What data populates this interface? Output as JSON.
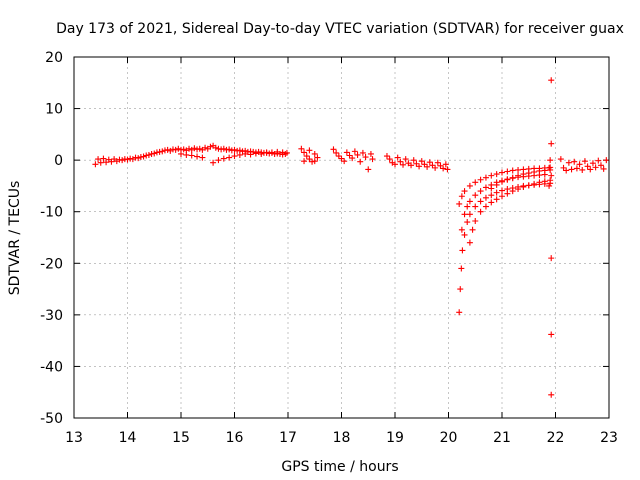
{
  "chart_data": {
    "type": "scatter",
    "title": "Day 173 of 2021, Sidereal Day-to-day VTEC variation (SDTVAR) for receiver guax",
    "xlabel": "GPS time / hours",
    "ylabel": "SDTVAR / TECUs",
    "xlim": [
      13,
      23
    ],
    "ylim": [
      -50,
      20
    ],
    "xticks": [
      13,
      14,
      15,
      16,
      17,
      18,
      19,
      20,
      21,
      22,
      23
    ],
    "xtick_labels": [
      "13",
      "14",
      "15",
      "16",
      "17",
      "18",
      "19",
      "20",
      "21",
      "22",
      "23"
    ],
    "yticks": [
      20,
      10,
      0,
      -10,
      -20,
      -30,
      -40,
      -50
    ],
    "ytick_labels": [
      "20",
      "10",
      "0",
      "-10",
      "-20",
      "-30",
      "-40",
      "-50"
    ],
    "grid": true,
    "marker": "+",
    "color": "#ff0000",
    "series": [
      {
        "name": "SDTVAR",
        "points": [
          [
            13.4,
            -0.8
          ],
          [
            13.45,
            0.2
          ],
          [
            13.5,
            -0.5
          ],
          [
            13.55,
            0.3
          ],
          [
            13.6,
            -0.4
          ],
          [
            13.65,
            0.1
          ],
          [
            13.7,
            -0.3
          ],
          [
            13.75,
            0.2
          ],
          [
            13.8,
            -0.2
          ],
          [
            13.85,
            0.1
          ],
          [
            13.9,
            0.0
          ],
          [
            13.95,
            0.2
          ],
          [
            14.0,
            0.1
          ],
          [
            14.05,
            0.3
          ],
          [
            14.1,
            0.2
          ],
          [
            14.15,
            0.5
          ],
          [
            14.2,
            0.4
          ],
          [
            14.25,
            0.6
          ],
          [
            14.3,
            0.7
          ],
          [
            14.35,
            0.9
          ],
          [
            14.4,
            1.0
          ],
          [
            14.45,
            1.2
          ],
          [
            14.5,
            1.3
          ],
          [
            14.55,
            1.5
          ],
          [
            14.6,
            1.6
          ],
          [
            14.65,
            1.7
          ],
          [
            14.7,
            1.9
          ],
          [
            14.75,
            2.0
          ],
          [
            14.8,
            1.8
          ],
          [
            14.85,
            2.1
          ],
          [
            14.9,
            2.0
          ],
          [
            14.95,
            2.2
          ],
          [
            15.0,
            2.0
          ],
          [
            15.05,
            2.1
          ],
          [
            15.1,
            1.9
          ],
          [
            15.15,
            2.2
          ],
          [
            15.2,
            2.0
          ],
          [
            15.25,
            2.3
          ],
          [
            15.3,
            2.1
          ],
          [
            15.35,
            2.2
          ],
          [
            15.4,
            2.0
          ],
          [
            15.45,
            2.4
          ],
          [
            15.5,
            2.2
          ],
          [
            15.55,
            2.6
          ],
          [
            15.6,
            2.8
          ],
          [
            15.65,
            2.4
          ],
          [
            15.7,
            2.2
          ],
          [
            15.75,
            2.1
          ],
          [
            15.8,
            2.2
          ],
          [
            15.85,
            2.0
          ],
          [
            15.9,
            2.1
          ],
          [
            15.95,
            1.9
          ],
          [
            16.0,
            2.0
          ],
          [
            16.05,
            1.8
          ],
          [
            16.1,
            1.9
          ],
          [
            16.15,
            1.7
          ],
          [
            16.2,
            1.8
          ],
          [
            16.25,
            1.6
          ],
          [
            16.3,
            1.7
          ],
          [
            16.35,
            1.6
          ],
          [
            16.4,
            1.5
          ],
          [
            16.45,
            1.6
          ],
          [
            16.5,
            1.5
          ],
          [
            16.55,
            1.4
          ],
          [
            16.6,
            1.5
          ],
          [
            16.65,
            1.3
          ],
          [
            16.7,
            1.4
          ],
          [
            16.75,
            1.2
          ],
          [
            16.8,
            1.3
          ],
          [
            16.85,
            1.2
          ],
          [
            16.9,
            1.1
          ],
          [
            16.95,
            1.2
          ],
          [
            15.0,
            1.2
          ],
          [
            15.1,
            1.0
          ],
          [
            15.2,
            0.9
          ],
          [
            15.3,
            0.7
          ],
          [
            15.4,
            0.5
          ],
          [
            15.6,
            -0.5
          ],
          [
            15.7,
            0.0
          ],
          [
            15.8,
            0.3
          ],
          [
            15.9,
            0.5
          ],
          [
            16.0,
            0.8
          ],
          [
            16.1,
            1.0
          ],
          [
            16.2,
            1.2
          ],
          [
            16.3,
            1.1
          ],
          [
            16.4,
            1.3
          ],
          [
            16.5,
            1.2
          ],
          [
            16.6,
            1.4
          ],
          [
            16.7,
            1.5
          ],
          [
            16.8,
            1.6
          ],
          [
            16.9,
            1.5
          ],
          [
            16.98,
            1.4
          ],
          [
            17.25,
            2.2
          ],
          [
            17.3,
            1.5
          ],
          [
            17.35,
            0.8
          ],
          [
            17.4,
            0.2
          ],
          [
            17.45,
            -0.3
          ],
          [
            17.5,
            -0.2
          ],
          [
            17.3,
            -0.2
          ],
          [
            17.4,
            1.9
          ],
          [
            17.5,
            1.2
          ],
          [
            17.55,
            0.5
          ],
          [
            17.85,
            2.1
          ],
          [
            17.9,
            1.4
          ],
          [
            17.95,
            0.8
          ],
          [
            18.0,
            0.3
          ],
          [
            18.05,
            -0.2
          ],
          [
            18.1,
            1.5
          ],
          [
            18.15,
            0.9
          ],
          [
            18.2,
            0.4
          ],
          [
            18.25,
            1.7
          ],
          [
            18.3,
            1.0
          ],
          [
            18.35,
            -0.3
          ],
          [
            18.4,
            1.4
          ],
          [
            18.45,
            0.6
          ],
          [
            18.5,
            -1.8
          ],
          [
            18.55,
            1.2
          ],
          [
            18.58,
            0.2
          ],
          [
            18.85,
            0.8
          ],
          [
            18.9,
            0.2
          ],
          [
            18.95,
            -0.5
          ],
          [
            19.0,
            -0.8
          ],
          [
            19.05,
            0.5
          ],
          [
            19.1,
            -0.3
          ],
          [
            19.15,
            -0.9
          ],
          [
            19.2,
            0.2
          ],
          [
            19.25,
            -0.6
          ],
          [
            19.3,
            -1.0
          ],
          [
            19.35,
            0.0
          ],
          [
            19.4,
            -0.7
          ],
          [
            19.45,
            -1.2
          ],
          [
            19.5,
            -0.2
          ],
          [
            19.55,
            -0.8
          ],
          [
            19.6,
            -1.3
          ],
          [
            19.65,
            -0.4
          ],
          [
            19.7,
            -1.0
          ],
          [
            19.75,
            -1.5
          ],
          [
            19.8,
            -0.5
          ],
          [
            19.85,
            -1.1
          ],
          [
            19.9,
            -1.6
          ],
          [
            19.95,
            -0.8
          ],
          [
            19.98,
            -1.8
          ],
          [
            20.2,
            -29.5
          ],
          [
            20.22,
            -25.0
          ],
          [
            20.24,
            -21.0
          ],
          [
            20.26,
            -17.5
          ],
          [
            20.3,
            -14.5
          ],
          [
            20.35,
            -12.0
          ],
          [
            20.4,
            -10.5
          ],
          [
            20.5,
            -9.0
          ],
          [
            20.6,
            -8.0
          ],
          [
            20.7,
            -7.3
          ],
          [
            20.8,
            -6.8
          ],
          [
            20.9,
            -6.3
          ],
          [
            21.0,
            -5.9
          ],
          [
            21.1,
            -5.6
          ],
          [
            21.2,
            -5.4
          ],
          [
            21.3,
            -5.2
          ],
          [
            21.4,
            -5.0
          ],
          [
            21.5,
            -4.9
          ],
          [
            21.6,
            -4.8
          ],
          [
            21.7,
            -4.7
          ],
          [
            21.8,
            -4.6
          ],
          [
            21.9,
            -4.5
          ],
          [
            20.25,
            -13.5
          ],
          [
            20.3,
            -10.5
          ],
          [
            20.35,
            -9.0
          ],
          [
            20.4,
            -8.0
          ],
          [
            20.5,
            -6.8
          ],
          [
            20.6,
            -6.0
          ],
          [
            20.7,
            -5.3
          ],
          [
            20.8,
            -4.8
          ],
          [
            20.9,
            -4.3
          ],
          [
            21.0,
            -4.0
          ],
          [
            21.1,
            -3.7
          ],
          [
            21.2,
            -3.5
          ],
          [
            21.3,
            -3.3
          ],
          [
            21.4,
            -3.2
          ],
          [
            21.5,
            -3.1
          ],
          [
            21.6,
            -3.0
          ],
          [
            21.7,
            -2.9
          ],
          [
            21.8,
            -2.8
          ],
          [
            20.2,
            -8.5
          ],
          [
            20.25,
            -7.0
          ],
          [
            20.3,
            -6.0
          ],
          [
            20.4,
            -5.0
          ],
          [
            20.5,
            -4.3
          ],
          [
            20.6,
            -3.8
          ],
          [
            20.7,
            -3.4
          ],
          [
            20.8,
            -3.0
          ],
          [
            20.9,
            -2.7
          ],
          [
            21.0,
            -2.4
          ],
          [
            21.1,
            -2.2
          ],
          [
            21.2,
            -2.0
          ],
          [
            21.3,
            -1.9
          ],
          [
            21.4,
            -1.8
          ],
          [
            21.5,
            -1.7
          ],
          [
            21.6,
            -1.6
          ],
          [
            21.7,
            -1.6
          ],
          [
            21.8,
            -1.5
          ],
          [
            21.9,
            -1.4
          ],
          [
            20.4,
            -16.0
          ],
          [
            20.45,
            -13.5
          ],
          [
            20.5,
            -11.8
          ],
          [
            20.6,
            -10.0
          ],
          [
            20.7,
            -9.0
          ],
          [
            20.8,
            -8.2
          ],
          [
            20.9,
            -7.6
          ],
          [
            21.0,
            -7.0
          ],
          [
            21.1,
            -6.5
          ],
          [
            21.2,
            -6.0
          ],
          [
            21.3,
            -5.6
          ],
          [
            21.4,
            -5.2
          ],
          [
            21.5,
            -4.9
          ],
          [
            21.6,
            -4.6
          ],
          [
            21.7,
            -4.3
          ],
          [
            21.8,
            -4.1
          ],
          [
            21.9,
            -3.9
          ],
          [
            20.8,
            -5.5
          ],
          [
            20.9,
            -4.8
          ],
          [
            21.0,
            -4.2
          ],
          [
            21.1,
            -3.8
          ],
          [
            21.2,
            -3.4
          ],
          [
            21.3,
            -3.0
          ],
          [
            21.4,
            -2.7
          ],
          [
            21.5,
            -2.5
          ],
          [
            21.6,
            -2.3
          ],
          [
            21.7,
            -2.1
          ],
          [
            21.8,
            -2.0
          ],
          [
            21.9,
            -1.9
          ],
          [
            21.92,
            15.5
          ],
          [
            21.92,
            3.2
          ],
          [
            21.92,
            -19.0
          ],
          [
            21.92,
            -33.8
          ],
          [
            21.92,
            -45.5
          ],
          [
            21.88,
            -1.5
          ],
          [
            21.9,
            0.0
          ],
          [
            21.92,
            -3.0
          ],
          [
            21.88,
            -5.0
          ],
          [
            22.1,
            0.2
          ],
          [
            22.15,
            -1.5
          ],
          [
            22.2,
            -2.0
          ],
          [
            22.25,
            -0.5
          ],
          [
            22.3,
            -1.8
          ],
          [
            22.35,
            -0.3
          ],
          [
            22.4,
            -1.6
          ],
          [
            22.45,
            -0.8
          ],
          [
            22.5,
            -1.9
          ],
          [
            22.55,
            -0.2
          ],
          [
            22.6,
            -1.2
          ],
          [
            22.65,
            -1.8
          ],
          [
            22.7,
            -0.6
          ],
          [
            22.75,
            -1.4
          ],
          [
            22.8,
            -0.1
          ],
          [
            22.85,
            -1.0
          ],
          [
            22.9,
            -1.7
          ],
          [
            22.95,
            0.0
          ]
        ]
      }
    ]
  }
}
